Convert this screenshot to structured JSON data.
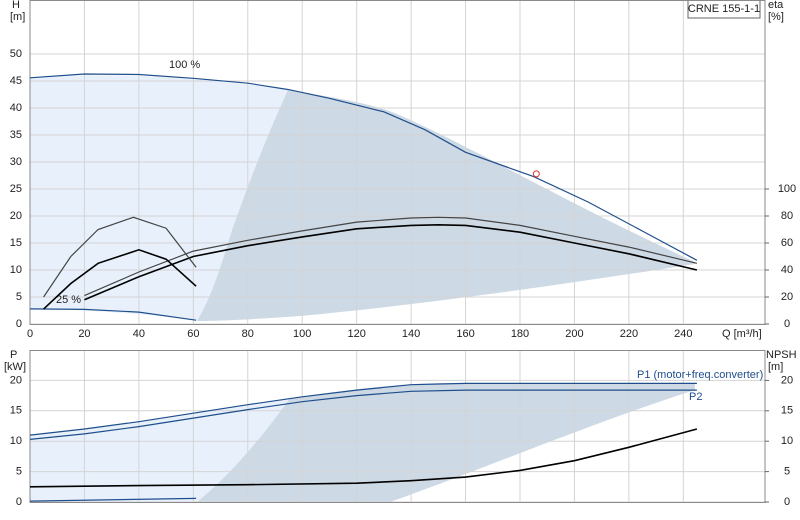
{
  "chart_data": [
    {
      "type": "line",
      "title": "CRNE 155-1-1",
      "y_label": "H",
      "y_unit": "[m]",
      "y2_label": "eta",
      "y2_unit": "[%]",
      "x_label": "Q [m³/h]",
      "annotations": [
        "100 %",
        "25 %"
      ],
      "xlim": [
        0,
        270
      ],
      "xticks": [
        0,
        20,
        40,
        60,
        80,
        100,
        120,
        140,
        160,
        180,
        200,
        220,
        240
      ],
      "ylim": [
        0,
        60
      ],
      "yticks": [
        0,
        5,
        10,
        15,
        20,
        25,
        30,
        35,
        40,
        45,
        50
      ],
      "y2lim": [
        0,
        240
      ],
      "y2ticks": [
        0,
        20,
        40,
        60,
        80,
        100
      ],
      "grid": true,
      "duty_point": {
        "x": 186,
        "y": 27.8,
        "color": "#e03030"
      },
      "series": [
        {
          "color": "#1f4e8c",
          "x": [
            0,
            20,
            40,
            60,
            80,
            95,
            110,
            130,
            145,
            160,
            185,
            205,
            225,
            245
          ],
          "values": [
            45.6,
            46.3,
            46.2,
            45.5,
            44.6,
            43.4,
            41.8,
            39.3,
            36,
            31.8,
            27.3,
            22.6,
            17.2,
            11.8
          ]
        },
        {
          "color": "#1f4e8c",
          "x": [
            0,
            20,
            40,
            61
          ],
          "values": [
            2.8,
            2.7,
            2.2,
            0.7
          ]
        },
        {
          "color": "#444444",
          "axis": "y2",
          "x": [
            20,
            40,
            60,
            80,
            100,
            120,
            140,
            150,
            160,
            180,
            200,
            220,
            245
          ],
          "values": [
            21,
            38.5,
            54,
            62,
            69,
            75.5,
            78.5,
            79,
            78.5,
            73,
            65,
            57,
            45
          ]
        },
        {
          "color": "#000000",
          "axis": "y2",
          "x": [
            20,
            40,
            60,
            80,
            100,
            120,
            140,
            150,
            160,
            180,
            200,
            220,
            245
          ],
          "values": [
            18,
            35,
            50,
            58,
            64.5,
            70.5,
            73,
            73.5,
            73,
            68,
            60,
            52,
            40
          ]
        },
        {
          "color": "#444444",
          "axis": "y2",
          "x": [
            5,
            15,
            25,
            38,
            50,
            61
          ],
          "values": [
            20,
            50,
            70,
            79,
            71,
            42
          ]
        },
        {
          "color": "#000000",
          "axis": "y2",
          "x": [
            5,
            15,
            25,
            40,
            50,
            61
          ],
          "values": [
            11,
            30,
            45,
            55,
            48,
            28
          ]
        }
      ]
    },
    {
      "type": "line",
      "y_label": "P",
      "y_unit": "[kW]",
      "y2_label": "NPSH",
      "y2_unit": "[m]",
      "annotations": [
        "P1 (motor+freq.converter)",
        "P2"
      ],
      "xlim": [
        0,
        270
      ],
      "ylim": [
        0,
        25
      ],
      "yticks": [
        0,
        5,
        10,
        15,
        20
      ],
      "y2lim": [
        0,
        25
      ],
      "y2ticks": [
        0,
        5,
        10,
        15,
        20
      ],
      "grid": true,
      "series": [
        {
          "color": "#1f4e8c",
          "x": [
            0,
            20,
            40,
            60,
            80,
            100,
            120,
            140,
            160,
            245
          ],
          "values": [
            11,
            12,
            13.2,
            14.6,
            16,
            17.3,
            18.4,
            19.3,
            19.5,
            19.5
          ]
        },
        {
          "color": "#1f4e8c",
          "x": [
            0,
            20,
            40,
            60,
            80,
            100,
            120,
            140,
            160,
            245
          ],
          "values": [
            10.3,
            11.2,
            12.4,
            13.8,
            15.2,
            16.5,
            17.5,
            18.2,
            18.4,
            18.4
          ]
        },
        {
          "color": "#1f4e8c",
          "x": [
            0,
            61
          ],
          "values": [
            0.15,
            0.6
          ]
        },
        {
          "color": "#000000",
          "axis": "y2",
          "x": [
            0,
            40,
            80,
            120,
            140,
            160,
            180,
            200,
            220,
            245
          ],
          "values": [
            2.5,
            2.7,
            2.85,
            3.1,
            3.5,
            4.1,
            5.2,
            6.8,
            9,
            12
          ]
        }
      ]
    }
  ]
}
